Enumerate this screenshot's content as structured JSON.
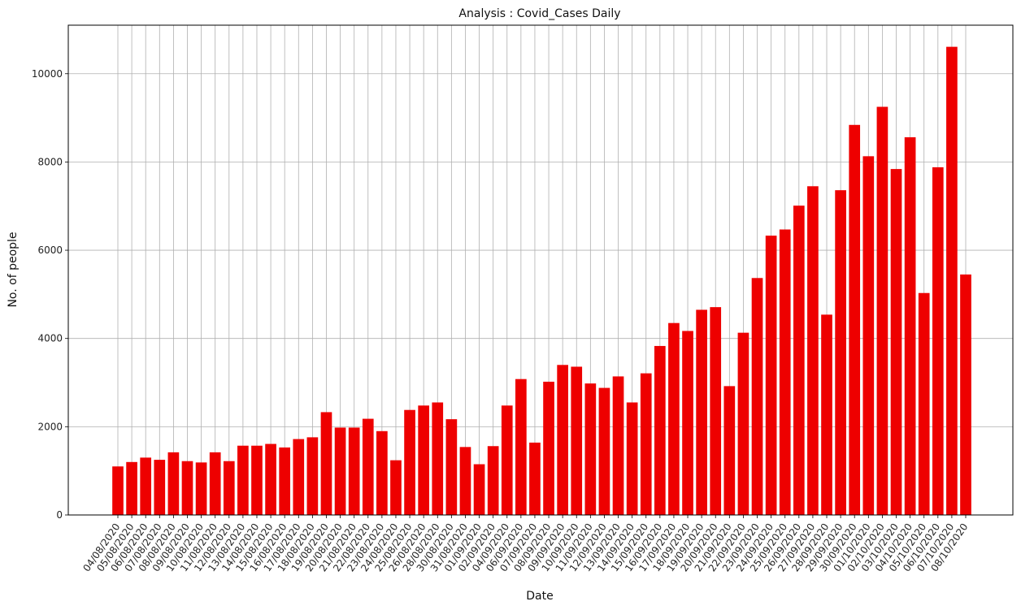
{
  "chart_data": {
    "type": "bar",
    "title": "Analysis : Covid_Cases Daily",
    "xlabel": "Date",
    "ylabel": "No. of people",
    "ylim": [
      0,
      11100
    ],
    "yticks": [
      0,
      2000,
      4000,
      6000,
      8000,
      10000
    ],
    "grid": true,
    "bar_color": "#ee0000",
    "categories": [
      "04/08/2020",
      "05/08/2020",
      "06/08/2020",
      "07/08/2020",
      "08/08/2020",
      "09/08/2020",
      "10/08/2020",
      "11/08/2020",
      "12/08/2020",
      "13/08/2020",
      "14/08/2020",
      "15/08/2020",
      "16/08/2020",
      "17/08/2020",
      "18/08/2020",
      "19/08/2020",
      "20/08/2020",
      "21/08/2020",
      "22/08/2020",
      "23/08/2020",
      "24/08/2020",
      "25/08/2020",
      "26/08/2020",
      "28/08/2020",
      "30/08/2020",
      "31/08/2020",
      "01/09/2020",
      "02/09/2020",
      "04/09/2020",
      "06/09/2020",
      "07/09/2020",
      "08/09/2020",
      "09/09/2020",
      "10/09/2020",
      "11/09/2020",
      "12/09/2020",
      "13/09/2020",
      "14/09/2020",
      "15/09/2020",
      "16/09/2020",
      "17/09/2020",
      "18/09/2020",
      "19/09/2020",
      "20/09/2020",
      "21/09/2020",
      "22/09/2020",
      "23/09/2020",
      "24/09/2020",
      "25/09/2020",
      "26/09/2020",
      "27/09/2020",
      "28/09/2020",
      "29/09/2020",
      "30/09/2020",
      "01/10/2020",
      "02/10/2020",
      "03/10/2020",
      "04/10/2020",
      "05/10/2020",
      "06/10/2020",
      "07/10/2020",
      "08/10/2020"
    ],
    "values": [
      1100,
      1200,
      1300,
      1250,
      1420,
      1220,
      1190,
      1420,
      1220,
      1570,
      1570,
      1610,
      1530,
      1720,
      1760,
      2330,
      1980,
      1980,
      2180,
      1900,
      1240,
      2380,
      2480,
      2550,
      2170,
      1540,
      1150,
      1560,
      2480,
      3080,
      1640,
      3020,
      3400,
      3360,
      2980,
      2880,
      3140,
      2550,
      3210,
      3830,
      4350,
      4170,
      4650,
      4710,
      2920,
      4130,
      5370,
      6330,
      6470,
      7010,
      7450,
      4540,
      7360,
      8840,
      8130,
      9250,
      7840,
      8560,
      5030,
      7880,
      10610,
      5450
    ]
  }
}
